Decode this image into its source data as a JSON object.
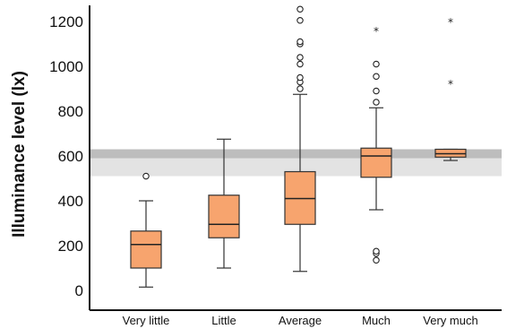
{
  "chart_data": {
    "type": "box",
    "ylabel": "Illuminance level (lx)",
    "xlabel": "",
    "ylim": [
      -50,
      1260
    ],
    "yticks": [
      0,
      200,
      400,
      600,
      800,
      1000,
      1200
    ],
    "grid": false,
    "legend": "none",
    "colors": {
      "box_fill": "#f7a46e",
      "box_stroke": "#333333",
      "band_dark": "#bdbdbd",
      "band_light": "#e3e3e3"
    },
    "reference_bands": [
      {
        "from": 590,
        "to": 630,
        "shade": "dark"
      },
      {
        "from": 510,
        "to": 590,
        "shade": "light"
      }
    ],
    "categories": [
      "Very little",
      "Little",
      "Average",
      "Much",
      "Very much"
    ],
    "boxes": [
      {
        "category": "Very little",
        "whisker_low": 15,
        "q1": 100,
        "median": 205,
        "q3": 265,
        "whisker_high": 400,
        "outliers": [
          510
        ],
        "extremes": []
      },
      {
        "category": "Little",
        "whisker_low": 100,
        "q1": 235,
        "median": 295,
        "q3": 425,
        "whisker_high": 675,
        "outliers": [],
        "extremes": []
      },
      {
        "category": "Average",
        "whisker_low": 85,
        "q1": 295,
        "median": 410,
        "q3": 530,
        "whisker_high": 875,
        "outliers": [
          900,
          930,
          950,
          1010,
          1040,
          1100,
          1110,
          1205,
          1255
        ],
        "extremes": []
      },
      {
        "category": "Much",
        "whisker_low": 360,
        "q1": 505,
        "median": 600,
        "q3": 635,
        "whisker_high": 815,
        "outliers": [
          135,
          165,
          175,
          840,
          890,
          955,
          1010
        ],
        "extremes": [
          1160
        ]
      },
      {
        "category": "Very much",
        "whisker_low": 580,
        "q1": 595,
        "median": 610,
        "q3": 630,
        "whisker_high": 630,
        "outliers": [],
        "extremes": [
          925,
          1200
        ]
      }
    ]
  }
}
